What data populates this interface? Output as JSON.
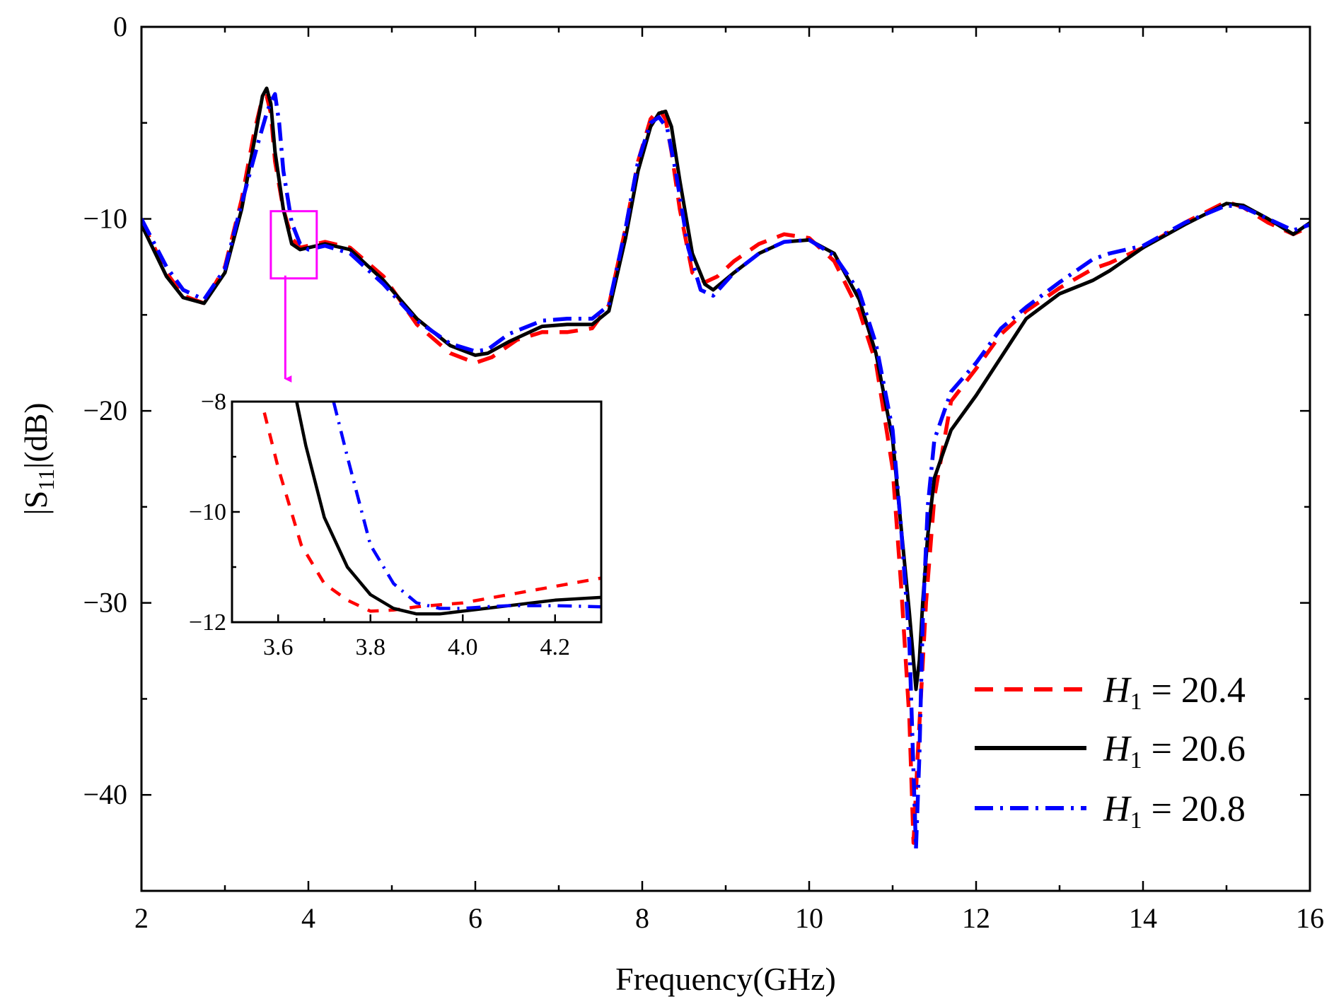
{
  "chart_data": {
    "type": "line",
    "title": "",
    "xlabel": "Frequency(GHz)",
    "ylabel": {
      "prefix": "|S",
      "subscript": "11",
      "suffix": "|(dB)"
    },
    "xlim": [
      2,
      16
    ],
    "ylim": [
      -45,
      0
    ],
    "xticks": [
      2,
      4,
      6,
      8,
      10,
      12,
      14,
      16
    ],
    "yticks": [
      0,
      -10,
      -20,
      -30,
      -40
    ],
    "ytick_labels": [
      "0",
      "−10",
      "−20",
      "−30",
      "−40"
    ],
    "legend_position": "bottom-right",
    "series": [
      {
        "name": "H1 = 20.4",
        "label": {
          "var": "H",
          "sub": "1",
          "rest": " = 20.4"
        },
        "color": "#ff0000",
        "style": "dashed",
        "x": [
          2.0,
          2.3,
          2.5,
          2.75,
          3.0,
          3.2,
          3.35,
          3.45,
          3.5,
          3.55,
          3.6,
          3.7,
          3.8,
          3.9,
          4.0,
          4.2,
          4.5,
          4.9,
          5.3,
          5.7,
          6.0,
          6.2,
          6.5,
          6.8,
          7.1,
          7.4,
          7.6,
          7.8,
          7.95,
          8.1,
          8.2,
          8.28,
          8.35,
          8.45,
          8.6,
          8.75,
          8.9,
          9.1,
          9.4,
          9.7,
          10.0,
          10.3,
          10.6,
          10.8,
          11.0,
          11.1,
          11.2,
          11.25,
          11.3,
          11.35,
          11.4,
          11.5,
          11.7,
          12.0,
          12.3,
          12.6,
          13.0,
          13.4,
          13.6,
          14.0,
          14.5,
          15.0,
          15.2,
          15.5,
          15.8,
          16.0
        ],
        "y": [
          -10.1,
          -12.8,
          -14.0,
          -14.4,
          -12.5,
          -9.0,
          -5.5,
          -3.7,
          -3.6,
          -4.5,
          -7.0,
          -9.5,
          -11.0,
          -11.5,
          -11.4,
          -11.2,
          -11.5,
          -13.0,
          -15.5,
          -17.0,
          -17.5,
          -17.2,
          -16.3,
          -15.9,
          -15.9,
          -15.7,
          -14.5,
          -10.5,
          -7.0,
          -4.8,
          -4.3,
          -4.8,
          -6.5,
          -9.5,
          -12.8,
          -13.3,
          -13.0,
          -12.2,
          -11.3,
          -10.8,
          -11.0,
          -12.2,
          -14.8,
          -17.5,
          -23.0,
          -29.0,
          -36.0,
          -42.5,
          -38.0,
          -34.0,
          -30.0,
          -24.5,
          -19.5,
          -17.8,
          -16.0,
          -14.8,
          -13.6,
          -12.6,
          -12.3,
          -11.5,
          -10.2,
          -9.1,
          -9.4,
          -10.2,
          -10.8,
          -10.4
        ]
      },
      {
        "name": "H1 = 20.6",
        "label": {
          "var": "H",
          "sub": "1",
          "rest": " = 20.6"
        },
        "color": "#000000",
        "style": "solid",
        "x": [
          2.0,
          2.3,
          2.5,
          2.75,
          3.0,
          3.2,
          3.35,
          3.45,
          3.5,
          3.55,
          3.6,
          3.7,
          3.8,
          3.9,
          4.0,
          4.2,
          4.5,
          4.9,
          5.3,
          5.7,
          6.0,
          6.15,
          6.4,
          6.8,
          7.1,
          7.4,
          7.6,
          7.8,
          7.95,
          8.1,
          8.2,
          8.28,
          8.35,
          8.45,
          8.6,
          8.75,
          8.85,
          9.1,
          9.4,
          9.7,
          10.0,
          10.3,
          10.6,
          10.8,
          11.0,
          11.1,
          11.2,
          11.28,
          11.32,
          11.36,
          11.42,
          11.5,
          11.7,
          12.0,
          12.3,
          12.6,
          13.0,
          13.4,
          13.6,
          14.0,
          14.5,
          15.0,
          15.2,
          15.5,
          15.8,
          16.0
        ],
        "y": [
          -10.3,
          -13.0,
          -14.1,
          -14.4,
          -12.8,
          -9.5,
          -6.0,
          -3.6,
          -3.2,
          -4.0,
          -6.5,
          -9.5,
          -11.3,
          -11.6,
          -11.5,
          -11.3,
          -11.6,
          -13.2,
          -15.2,
          -16.6,
          -17.1,
          -17.0,
          -16.4,
          -15.6,
          -15.5,
          -15.5,
          -14.8,
          -11.0,
          -7.5,
          -5.2,
          -4.5,
          -4.4,
          -5.2,
          -8.0,
          -11.8,
          -13.4,
          -13.7,
          -12.8,
          -11.8,
          -11.2,
          -11.1,
          -11.8,
          -14.2,
          -17.0,
          -21.5,
          -26.0,
          -30.5,
          -34.5,
          -33.0,
          -30.0,
          -26.5,
          -23.5,
          -21.0,
          -19.2,
          -17.2,
          -15.2,
          -13.9,
          -13.2,
          -12.7,
          -11.5,
          -10.3,
          -9.2,
          -9.3,
          -10.0,
          -10.8,
          -10.2
        ]
      },
      {
        "name": "H1 = 20.8",
        "label": {
          "var": "H",
          "sub": "1",
          "rest": " = 20.8"
        },
        "color": "#0000ff",
        "style": "dashdot",
        "x": [
          2.0,
          2.3,
          2.5,
          2.75,
          3.0,
          3.2,
          3.4,
          3.5,
          3.55,
          3.6,
          3.65,
          3.7,
          3.8,
          3.9,
          4.0,
          4.2,
          4.5,
          4.9,
          5.3,
          5.7,
          6.0,
          6.15,
          6.4,
          6.8,
          7.1,
          7.4,
          7.6,
          7.8,
          7.95,
          8.1,
          8.2,
          8.3,
          8.4,
          8.55,
          8.7,
          8.85,
          9.1,
          9.4,
          9.7,
          10.0,
          10.3,
          10.6,
          10.8,
          11.0,
          11.1,
          11.2,
          11.28,
          11.32,
          11.36,
          11.42,
          11.5,
          11.7,
          12.0,
          12.3,
          12.6,
          13.0,
          13.4,
          13.6,
          14.0,
          14.5,
          15.0,
          15.2,
          15.5,
          15.8,
          16.0
        ],
        "y": [
          -10.0,
          -12.5,
          -13.7,
          -14.2,
          -12.6,
          -9.2,
          -6.0,
          -4.5,
          -3.9,
          -3.5,
          -5.0,
          -7.5,
          -10.2,
          -11.3,
          -11.6,
          -11.4,
          -11.8,
          -13.4,
          -15.3,
          -16.5,
          -16.9,
          -16.8,
          -16.0,
          -15.3,
          -15.2,
          -15.2,
          -14.5,
          -10.5,
          -7.0,
          -5.0,
          -4.7,
          -5.3,
          -7.5,
          -11.5,
          -13.7,
          -14.0,
          -12.8,
          -11.8,
          -11.2,
          -11.1,
          -11.9,
          -13.8,
          -16.5,
          -21.0,
          -26.0,
          -32.0,
          -42.8,
          -38.0,
          -31.0,
          -25.0,
          -21.5,
          -19.0,
          -17.5,
          -15.7,
          -14.6,
          -13.3,
          -12.1,
          -11.8,
          -11.4,
          -10.2,
          -9.3,
          -9.4,
          -10.0,
          -10.6,
          -10.3
        ]
      }
    ],
    "inset": {
      "xlim": [
        3.5,
        4.3
      ],
      "ylim": [
        -12,
        -8
      ],
      "xticks": [
        3.6,
        3.8,
        4.0,
        4.2
      ],
      "xtick_labels": [
        "3.6",
        "3.8",
        "4.0",
        "4.2"
      ],
      "yticks": [
        -8,
        -10,
        -12
      ],
      "ytick_labels": [
        "−8",
        "−10",
        "−12"
      ],
      "zoom_region": {
        "x": [
          3.55,
          4.1
        ],
        "y": [
          -13.1,
          -9.6
        ]
      },
      "series": [
        {
          "x": [
            3.57,
            3.6,
            3.65,
            3.7,
            3.75,
            3.8,
            3.85,
            3.9,
            4.0,
            4.1,
            4.2,
            4.3
          ],
          "y": [
            -8.2,
            -9.2,
            -10.6,
            -11.3,
            -11.6,
            -11.8,
            -11.78,
            -11.72,
            -11.65,
            -11.5,
            -11.35,
            -11.2
          ]
        },
        {
          "x": [
            3.64,
            3.66,
            3.7,
            3.75,
            3.8,
            3.85,
            3.9,
            3.95,
            4.0,
            4.1,
            4.2,
            4.3
          ],
          "y": [
            -8.0,
            -8.8,
            -10.1,
            -11.0,
            -11.5,
            -11.75,
            -11.85,
            -11.85,
            -11.8,
            -11.7,
            -11.6,
            -11.55
          ]
        },
        {
          "x": [
            3.72,
            3.75,
            3.8,
            3.85,
            3.9,
            3.95,
            4.0,
            4.05,
            4.1,
            4.2,
            4.3
          ],
          "y": [
            -8.0,
            -9.0,
            -10.6,
            -11.3,
            -11.65,
            -11.75,
            -11.75,
            -11.72,
            -11.7,
            -11.7,
            -11.72
          ]
        }
      ]
    }
  }
}
